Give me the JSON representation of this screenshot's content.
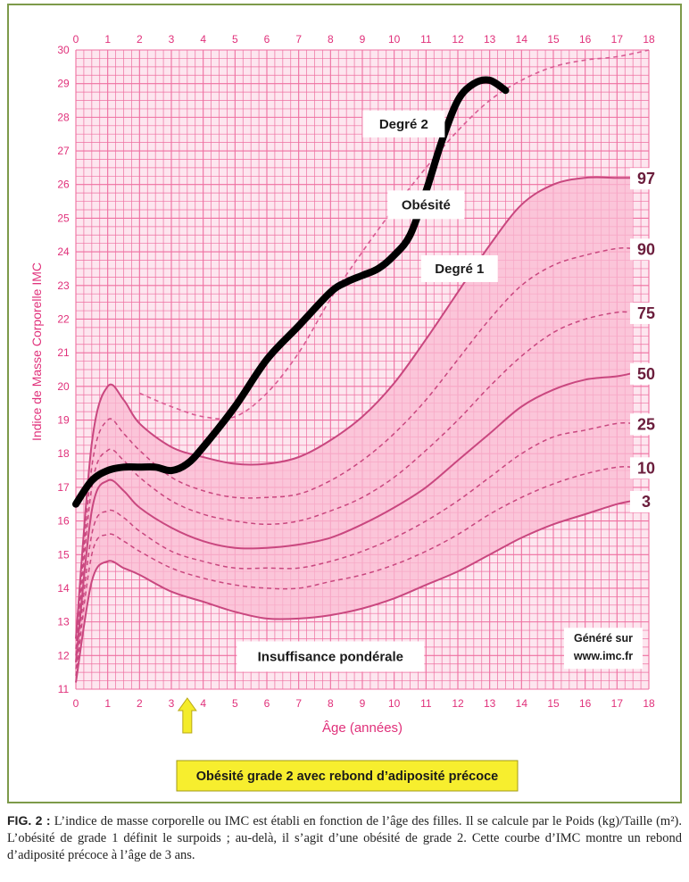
{
  "chart_data": {
    "type": "line",
    "xlabel": "Âge (années)",
    "ylabel": "Indice de Masse Corporelle IMC",
    "xlim": [
      0,
      18
    ],
    "ylim": [
      11,
      30
    ],
    "x_ticks": [
      "0",
      "1",
      "2",
      "3",
      "4",
      "5",
      "6",
      "7",
      "8",
      "9",
      "10",
      "11",
      "12",
      "13",
      "14",
      "15",
      "16",
      "17",
      "18"
    ],
    "y_ticks": [
      "11",
      "12",
      "13",
      "14",
      "15",
      "16",
      "17",
      "18",
      "19",
      "20",
      "21",
      "22",
      "23",
      "24",
      "25",
      "26",
      "27",
      "28",
      "29",
      "30"
    ],
    "grid": true,
    "percentile_series": [
      {
        "name": "97",
        "x": [
          0,
          0.5,
          1,
          1.5,
          2,
          3,
          4,
          5,
          6,
          7,
          8,
          9,
          10,
          11,
          12,
          13,
          14,
          15,
          16,
          17,
          17.5
        ],
        "values": [
          12.5,
          18.3,
          20.0,
          19.6,
          18.9,
          18.2,
          17.9,
          17.7,
          17.7,
          17.9,
          18.4,
          19.1,
          20.1,
          21.4,
          22.8,
          24.2,
          25.4,
          26.0,
          26.2,
          26.2,
          26.2
        ]
      },
      {
        "name": "90",
        "x": [
          0,
          0.5,
          1,
          1.5,
          2,
          3,
          4,
          5,
          6,
          7,
          8,
          9,
          10,
          11,
          12,
          13,
          14,
          15,
          16,
          17,
          17.5
        ],
        "values": [
          12.2,
          17.6,
          19.0,
          18.6,
          18.1,
          17.3,
          16.9,
          16.7,
          16.7,
          16.8,
          17.2,
          17.8,
          18.6,
          19.6,
          20.8,
          22.0,
          23.0,
          23.6,
          23.9,
          24.1,
          24.1
        ]
      },
      {
        "name": "75",
        "x": [
          0,
          0.5,
          1,
          1.5,
          2,
          3,
          4,
          5,
          6,
          7,
          8,
          9,
          10,
          11,
          12,
          13,
          14,
          15,
          16,
          17,
          17.5
        ],
        "values": [
          12.0,
          17.0,
          18.1,
          17.8,
          17.3,
          16.6,
          16.2,
          16.0,
          15.9,
          16.0,
          16.3,
          16.7,
          17.3,
          18.1,
          19.0,
          20.0,
          20.9,
          21.6,
          22.0,
          22.2,
          22.2
        ]
      },
      {
        "name": "50",
        "x": [
          0,
          0.5,
          1,
          1.5,
          2,
          3,
          4,
          5,
          6,
          7,
          8,
          9,
          10,
          11,
          12,
          13,
          14,
          15,
          16,
          17,
          17.5
        ],
        "values": [
          11.8,
          16.3,
          17.2,
          16.9,
          16.4,
          15.8,
          15.4,
          15.2,
          15.2,
          15.3,
          15.5,
          15.9,
          16.4,
          17.0,
          17.8,
          18.6,
          19.4,
          19.9,
          20.2,
          20.3,
          20.4
        ]
      },
      {
        "name": "25",
        "x": [
          0,
          0.5,
          1,
          1.5,
          2,
          3,
          4,
          5,
          6,
          7,
          8,
          9,
          10,
          11,
          12,
          13,
          14,
          15,
          16,
          17,
          17.5
        ],
        "values": [
          11.6,
          15.6,
          16.3,
          16.1,
          15.7,
          15.1,
          14.8,
          14.6,
          14.6,
          14.6,
          14.8,
          15.1,
          15.5,
          16.0,
          16.6,
          17.3,
          18.0,
          18.5,
          18.7,
          18.9,
          18.9
        ]
      },
      {
        "name": "10",
        "x": [
          0,
          0.5,
          1,
          1.5,
          2,
          3,
          4,
          5,
          6,
          7,
          8,
          9,
          10,
          11,
          12,
          13,
          14,
          15,
          16,
          17,
          17.5
        ],
        "values": [
          11.4,
          15.0,
          15.6,
          15.4,
          15.1,
          14.6,
          14.3,
          14.1,
          14.0,
          14.0,
          14.2,
          14.4,
          14.7,
          15.1,
          15.6,
          16.2,
          16.7,
          17.1,
          17.4,
          17.6,
          17.6
        ]
      },
      {
        "name": "3",
        "x": [
          0,
          0.5,
          1,
          1.5,
          2,
          3,
          4,
          5,
          6,
          7,
          8,
          9,
          10,
          11,
          12,
          13,
          14,
          15,
          16,
          17,
          17.5
        ],
        "values": [
          11.2,
          14.2,
          14.8,
          14.6,
          14.4,
          13.9,
          13.6,
          13.3,
          13.1,
          13.1,
          13.2,
          13.4,
          13.7,
          14.1,
          14.5,
          15.0,
          15.5,
          15.9,
          16.2,
          16.5,
          16.6
        ]
      }
    ],
    "obesity_threshold": {
      "x": [
        2,
        3,
        4,
        5,
        6,
        7,
        8,
        9,
        10,
        11,
        12,
        13,
        14,
        15,
        16,
        17,
        18
      ],
      "values": [
        19.8,
        19.4,
        19.1,
        19.1,
        19.8,
        21.0,
        22.6,
        24.0,
        25.3,
        26.5,
        27.6,
        28.5,
        29.1,
        29.5,
        29.7,
        29.8,
        30.0
      ]
    },
    "patient_series": {
      "x": [
        0,
        0.5,
        1,
        1.5,
        2,
        2.5,
        3,
        3.5,
        4,
        5,
        6,
        7,
        8,
        8.5,
        9,
        9.5,
        10,
        10.5,
        11,
        11.5,
        12,
        12.5,
        13,
        13.5
      ],
      "values": [
        16.5,
        17.2,
        17.5,
        17.6,
        17.6,
        17.6,
        17.5,
        17.7,
        18.2,
        19.4,
        20.8,
        21.8,
        22.8,
        23.1,
        23.3,
        23.5,
        23.9,
        24.5,
        25.8,
        27.3,
        28.5,
        29.0,
        29.1,
        28.8
      ]
    },
    "end_labels": [
      "97",
      "90",
      "75",
      "50",
      "25",
      "10",
      "3"
    ],
    "annotations": {
      "degre2": "Degré 2",
      "obesite": "Obésité",
      "degre1": "Degré 1",
      "insuffisance": "Insuffisance pondérale",
      "genere": "Généré sur",
      "site": "www.imc.fr",
      "callout": "Obésité grade 2 avec rebond d’adiposité précoce"
    },
    "colors": {
      "grid": "#ee6fa0",
      "band": "#f9b9d2",
      "percentile": "#c9477f",
      "patient": "#000000",
      "axis_text": "#e0307a",
      "callout_bg": "#f7ee2e",
      "arrow": "#f4ec2a"
    }
  },
  "caption": {
    "fig_label": "FIG. 2 :",
    "text": "L’indice de masse corporelle ou IMC est établi en fonction de l’âge des filles. Il se calcule par le Poids (kg)/Taille (m²). L’obésité de grade 1 définit le surpoids ; au-delà, il s’agit d’une obésité de grade 2. Cette courbe d’IMC montre un rebond d’adiposité précoce à l’âge de 3 ans."
  }
}
